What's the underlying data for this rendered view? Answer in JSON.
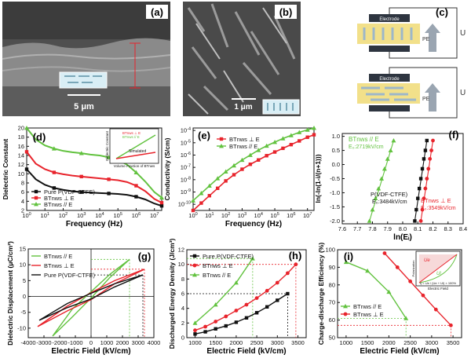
{
  "figure": {
    "colors": {
      "black": "#111111",
      "red": "#e8242c",
      "green": "#62c23f",
      "dark_red": "#b81c22",
      "sem_bg": "#4a4a4a"
    },
    "sem": {
      "a": {
        "label": "(a)",
        "scale_bar": "5 μm",
        "icon": "nanowire-film-inset-icon"
      },
      "b": {
        "label": "(b)",
        "scale_bar": "1 μm",
        "icon": "nanowire-film-inset-icon"
      }
    },
    "schematic": {
      "label": "(c)",
      "top": {
        "electrode": "Electrode",
        "pe": "PE",
        "voltage": "U"
      },
      "bottom": {
        "electrode": "Electrode",
        "pe": "PE",
        "voltage": "U"
      }
    }
  },
  "chart_data": [
    {
      "id": "d",
      "label": "(d)",
      "type": "line",
      "xlabel": "Frequency (Hz)",
      "ylabel": "Dielectric Constant",
      "x_ticks": [
        "10^0",
        "10^1",
        "10^2",
        "10^3",
        "10^4",
        "10^5",
        "10^6",
        "10^7"
      ],
      "y_ticks": [
        "2",
        "4",
        "6",
        "8",
        "10",
        "12",
        "14",
        "16",
        "18",
        "20"
      ],
      "ylim": [
        2,
        20
      ],
      "xlim_log": [
        0,
        7.4
      ],
      "series": [
        {
          "name": "Pure P(VDF-CTFE)",
          "color": "#111111",
          "marker": "square",
          "x_log": [
            0,
            0.5,
            1,
            1.5,
            2,
            2.5,
            3,
            3.5,
            4,
            4.5,
            5,
            5.5,
            6,
            6.5,
            7,
            7.4
          ],
          "values": [
            11,
            8.8,
            7.6,
            6.9,
            6.5,
            6.2,
            6.0,
            5.9,
            5.8,
            5.7,
            5.6,
            5.4,
            5.0,
            4.4,
            3.5,
            3.0
          ]
        },
        {
          "name": "BTnws ⊥ E",
          "color": "#e8242c",
          "marker": "square",
          "x_log": [
            0,
            0.5,
            1,
            1.5,
            2,
            2.5,
            3,
            3.5,
            4,
            4.5,
            5,
            5.5,
            6,
            6.5,
            7,
            7.4
          ],
          "values": [
            14.8,
            12.2,
            11.0,
            10.3,
            9.9,
            9.6,
            9.4,
            9.2,
            9.0,
            8.8,
            8.6,
            8.2,
            7.4,
            6.2,
            4.5,
            3.7
          ]
        },
        {
          "name": "BTnws // E",
          "color": "#62c23f",
          "marker": "triangle",
          "x_log": [
            0,
            0.5,
            1,
            1.5,
            2,
            2.5,
            3,
            3.5,
            4,
            4.5,
            5,
            5.5,
            6,
            6.5,
            7,
            7.4
          ],
          "values": [
            20,
            17.5,
            16.2,
            15.5,
            15.0,
            14.7,
            14.5,
            14.2,
            14.0,
            13.6,
            13.0,
            12.0,
            10.3,
            8.3,
            6.0,
            4.8
          ]
        }
      ],
      "inset": {
        "legend": [
          "BTnws ⊥ E",
          "BTnws // E"
        ],
        "text": "Simulated",
        "ylabel": "Dielectric Constant",
        "xlabel": "Volume Fraction of BTnws"
      }
    },
    {
      "id": "e",
      "label": "(e)",
      "type": "line",
      "xlabel": "Frequency (Hz)",
      "ylabel": "Conductivity (S/cm)",
      "x_ticks": [
        "10^0",
        "10^1",
        "10^2",
        "10^3",
        "10^4",
        "10^5",
        "10^6",
        "10^7"
      ],
      "y_ticks": [
        "10^-10",
        "10^-9",
        "10^-8",
        "10^-7",
        "10^-6",
        "10^-5",
        "10^-4"
      ],
      "ylim_log": [
        -10.5,
        -3.8
      ],
      "xlim_log": [
        0,
        7.4
      ],
      "series": [
        {
          "name": "BTnws ⊥ E",
          "color": "#e8242c",
          "marker": "square",
          "x_log": [
            0,
            0.5,
            1,
            1.5,
            2,
            2.5,
            3,
            3.5,
            4,
            4.5,
            5,
            5.5,
            6,
            6.5,
            7,
            7.4
          ],
          "values_log": [
            -10.5,
            -9.9,
            -9.3,
            -8.7,
            -8.1,
            -7.6,
            -7.15,
            -6.75,
            -6.4,
            -6.05,
            -5.75,
            -5.45,
            -5.15,
            -4.85,
            -4.55,
            -4.35
          ]
        },
        {
          "name": "BTnws // E",
          "color": "#62c23f",
          "marker": "triangle",
          "x_log": [
            0,
            0.5,
            1,
            1.5,
            2,
            2.5,
            3,
            3.5,
            4,
            4.5,
            5,
            5.5,
            6,
            6.5,
            7,
            7.4
          ],
          "values_log": [
            -9.7,
            -9.1,
            -8.5,
            -7.9,
            -7.35,
            -6.85,
            -6.4,
            -6.0,
            -5.6,
            -5.25,
            -4.95,
            -4.65,
            -4.4,
            -4.15,
            -3.95,
            -3.8
          ]
        }
      ]
    },
    {
      "id": "f",
      "label": "(f)",
      "type": "scatter",
      "xlabel": "ln(Eᵢ)",
      "ylabel": "ln(-ln(1-i/(n+1)))",
      "x_ticks": [
        "7.6",
        "7.7",
        "7.8",
        "7.9",
        "8.0",
        "8.1",
        "8.2",
        "8.3",
        "8.4"
      ],
      "y_ticks": [
        "-2.0",
        "-1.5",
        "-1.0",
        "-0.5",
        "0.0",
        "0.5",
        "1.0"
      ],
      "xlim": [
        7.6,
        8.4
      ],
      "ylim": [
        -2.1,
        1.1
      ],
      "series": [
        {
          "name": "BTnws // E",
          "annotation": "E₀:2719kV/cm",
          "color": "#62c23f",
          "marker": "triangle",
          "x": [
            7.78,
            7.8,
            7.82,
            7.84,
            7.86,
            7.88,
            7.9,
            7.92,
            7.94
          ],
          "y": [
            -2.0,
            -1.6,
            -1.2,
            -0.85,
            -0.5,
            -0.15,
            0.2,
            0.5,
            0.85
          ]
        },
        {
          "name": "P(VDF-CTFE)",
          "annotation": "E₀:3484kV/cm",
          "color": "#111111",
          "marker": "square",
          "x": [
            8.08,
            8.09,
            8.1,
            8.11,
            8.12,
            8.13,
            8.14,
            8.15,
            8.16
          ],
          "y": [
            -2.0,
            -1.6,
            -1.2,
            -0.85,
            -0.5,
            -0.15,
            0.2,
            0.5,
            0.85
          ]
        },
        {
          "name": "BTnws ⊥ E",
          "annotation": "E₀:3549kV/cm",
          "color": "#e8242c",
          "marker": "circle",
          "x": [
            8.12,
            8.13,
            8.14,
            8.15,
            8.16,
            8.17,
            8.18,
            8.19,
            8.2
          ],
          "y": [
            -2.0,
            -1.6,
            -1.2,
            -0.85,
            -0.5,
            -0.15,
            0.2,
            0.5,
            0.85
          ]
        }
      ]
    },
    {
      "id": "g",
      "label": "(g)",
      "type": "line",
      "xlabel": "Electric Field (kV/cm)",
      "ylabel": "Dielectric Displacement (μC/cm²)",
      "x_ticks": [
        "-4000",
        "-3000",
        "-2000",
        "-1000",
        "0",
        "1000",
        "2000",
        "3000",
        "4000"
      ],
      "y_ticks": [
        "-10",
        "-5",
        "0",
        "5",
        "10",
        "15"
      ],
      "xlim": [
        -4000,
        4000
      ],
      "ylim": [
        -13,
        15
      ],
      "series": [
        {
          "name": "BTnws // E",
          "color": "#62c23f",
          "loop": [
            [
              -2450,
              -12.5
            ],
            [
              -1200,
              -6.5
            ],
            [
              0,
              -0.5
            ],
            [
              1200,
              6.0
            ],
            [
              2450,
              11.7
            ],
            [
              1200,
              7.0
            ],
            [
              0,
              1.5
            ],
            [
              -1200,
              -4.0
            ],
            [
              -2450,
              -12.5
            ]
          ]
        },
        {
          "name": "BTnws ⊥ E",
          "color": "#e8242c",
          "loop": [
            [
              -3400,
              -9.5
            ],
            [
              -1500,
              -4.5
            ],
            [
              0,
              -1.0
            ],
            [
              1500,
              4.0
            ],
            [
              3400,
              8.6
            ],
            [
              1500,
              5.0
            ],
            [
              0,
              1.2
            ],
            [
              -1500,
              -3.0
            ],
            [
              -3400,
              -9.5
            ]
          ]
        },
        {
          "name": "Pure P(VDF-CTFE)",
          "color": "#111111",
          "loop": [
            [
              -3300,
              -7.5
            ],
            [
              -1500,
              -3.5
            ],
            [
              0,
              -0.8
            ],
            [
              1500,
              3.0
            ],
            [
              3300,
              6.8
            ],
            [
              1500,
              4.0
            ],
            [
              0,
              1.0
            ],
            [
              -1500,
              -2.2
            ],
            [
              -3300,
              -7.5
            ]
          ]
        }
      ],
      "guides": [
        {
          "color": "#62c23f",
          "x": 2450,
          "y": 11.7
        },
        {
          "color": "#e8242c",
          "x": 3400,
          "y": 8.6
        },
        {
          "color": "#111111",
          "x": 3300,
          "y": 6.8
        }
      ]
    },
    {
      "id": "h",
      "label": "(h)",
      "type": "line",
      "xlabel": "Electric Field (kV/cm)",
      "ylabel": "Discharged Energy Density (J/cm³)",
      "x_ticks": [
        "1000",
        "1500",
        "2000",
        "2500",
        "3000",
        "3500"
      ],
      "y_ticks": [
        "0",
        "2",
        "4",
        "6",
        "8",
        "10",
        "12"
      ],
      "xlim": [
        800,
        3700
      ],
      "ylim": [
        0,
        12
      ],
      "series": [
        {
          "name": "Pure P(VDF-CTFE)",
          "color": "#111111",
          "marker": "square",
          "x": [
            1000,
            1250,
            1500,
            1750,
            2000,
            2250,
            2500,
            2750,
            3000,
            3250
          ],
          "values": [
            0.5,
            0.8,
            1.2,
            1.6,
            2.1,
            2.7,
            3.4,
            4.2,
            5.1,
            6.0
          ]
        },
        {
          "name": "BTnws ⊥ E",
          "color": "#e8242c",
          "marker": "circle",
          "x": [
            1000,
            1250,
            1500,
            1750,
            2000,
            2250,
            2500,
            2750,
            3000,
            3250,
            3450
          ],
          "values": [
            1.0,
            1.5,
            2.2,
            2.9,
            3.7,
            4.5,
            5.4,
            6.4,
            7.5,
            8.8,
            10.0
          ]
        },
        {
          "name": "BTnws // E",
          "color": "#62c23f",
          "marker": "triangle",
          "x": [
            1000,
            1500,
            2000,
            2400
          ],
          "values": [
            2.0,
            4.5,
            7.5,
            10.8
          ]
        }
      ],
      "guides": [
        {
          "color": "#62c23f",
          "x": 2400,
          "y": 10.8
        },
        {
          "color": "#e8242c",
          "x": 3450,
          "y": 10.0
        },
        {
          "color": "#111111",
          "x": 3250,
          "y": 6.0
        }
      ]
    },
    {
      "id": "i",
      "label": "(i)",
      "type": "line",
      "xlabel": "Electric Field (kV/cm)",
      "ylabel": "Charge-discharge Efficiency (%)",
      "x_ticks": [
        "1000",
        "1500",
        "2000",
        "2500",
        "3000",
        "3500"
      ],
      "y_ticks": [
        "50",
        "60",
        "70",
        "80",
        "90",
        "100"
      ],
      "xlim": [
        800,
        3700
      ],
      "ylim": [
        50,
        100
      ],
      "series": [
        {
          "name": "BTnws // E",
          "color": "#62c23f",
          "marker": "triangle",
          "x": [
            1000,
            1500,
            2000,
            2400
          ],
          "values": [
            93,
            88,
            76,
            61
          ]
        },
        {
          "name": "BTnws ⊥ E",
          "color": "#e8242c",
          "marker": "circle",
          "x": [
            1900,
            2200,
            2500,
            2800,
            3100,
            3450
          ],
          "values": [
            98,
            90,
            82,
            74,
            66,
            57
          ]
        }
      ],
      "guides": [
        {
          "color": "#62c23f",
          "x": 2400,
          "y": 61
        },
        {
          "color": "#e8242c",
          "x": 3450,
          "y": 57
        }
      ],
      "inset": {
        "ue": "Ue",
        "ul": "Ul",
        "formula": "η = Ue / (Ue + Ul) × 100%",
        "ylabel": "Polarization",
        "xlabel": "Electric Field"
      }
    }
  ]
}
